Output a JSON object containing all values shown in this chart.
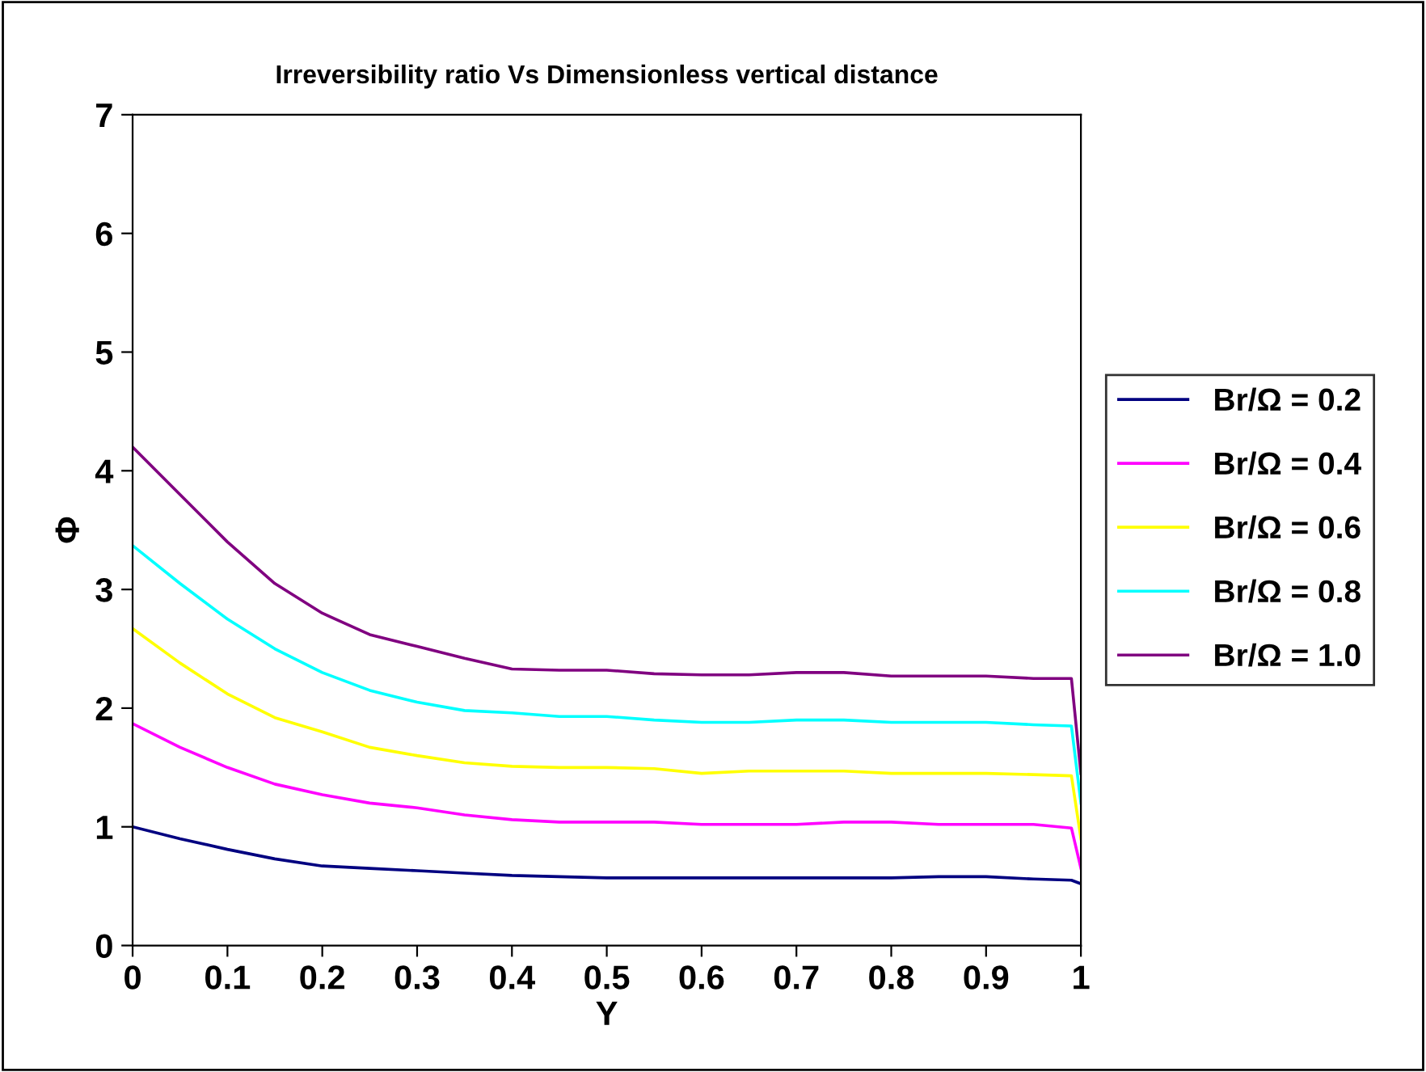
{
  "chart_data": {
    "type": "line",
    "title": "Irreversibility ratio Vs Dimensionless vertical distance",
    "xlabel": "Y",
    "ylabel": "Φ",
    "x": [
      0,
      0.05,
      0.1,
      0.15,
      0.2,
      0.25,
      0.3,
      0.35,
      0.4,
      0.45,
      0.5,
      0.55,
      0.6,
      0.65,
      0.7,
      0.75,
      0.8,
      0.85,
      0.9,
      0.95,
      0.99,
      1
    ],
    "series": [
      {
        "name": "Br/Ω = 0.2",
        "color": "#000080",
        "values": [
          1.0,
          0.9,
          0.81,
          0.73,
          0.67,
          0.65,
          0.63,
          0.61,
          0.59,
          0.58,
          0.57,
          0.57,
          0.57,
          0.57,
          0.57,
          0.57,
          0.57,
          0.58,
          0.58,
          0.56,
          0.55,
          0.52
        ]
      },
      {
        "name": "Br/Ω = 0.4",
        "color": "#ff00ff",
        "values": [
          1.87,
          1.67,
          1.5,
          1.36,
          1.27,
          1.2,
          1.16,
          1.1,
          1.06,
          1.04,
          1.04,
          1.04,
          1.02,
          1.02,
          1.02,
          1.04,
          1.04,
          1.02,
          1.02,
          1.02,
          0.99,
          0.65
        ]
      },
      {
        "name": "Br/Ω = 0.6",
        "color": "#ffff00",
        "values": [
          2.67,
          2.38,
          2.12,
          1.92,
          1.8,
          1.67,
          1.6,
          1.54,
          1.51,
          1.5,
          1.5,
          1.49,
          1.45,
          1.47,
          1.47,
          1.47,
          1.45,
          1.45,
          1.45,
          1.44,
          1.43,
          0.9
        ]
      },
      {
        "name": "Br/Ω = 0.8",
        "color": "#00ffff",
        "values": [
          3.37,
          3.05,
          2.75,
          2.5,
          2.3,
          2.15,
          2.05,
          1.98,
          1.96,
          1.93,
          1.93,
          1.9,
          1.88,
          1.88,
          1.9,
          1.9,
          1.88,
          1.88,
          1.88,
          1.86,
          1.85,
          1.2
        ]
      },
      {
        "name": "Br/Ω = 1.0",
        "color": "#800080",
        "values": [
          4.2,
          3.8,
          3.4,
          3.05,
          2.8,
          2.62,
          2.52,
          2.42,
          2.33,
          2.32,
          2.32,
          2.29,
          2.28,
          2.28,
          2.3,
          2.3,
          2.27,
          2.27,
          2.27,
          2.25,
          2.25,
          1.45
        ]
      }
    ],
    "xlim": [
      0,
      1
    ],
    "ylim": [
      0,
      7
    ],
    "xticks": [
      0,
      0.1,
      0.2,
      0.3,
      0.4,
      0.5,
      0.6,
      0.7,
      0.8,
      0.9,
      1
    ],
    "yticks": [
      0,
      1,
      2,
      3,
      4,
      5,
      6,
      7
    ],
    "legend": "right",
    "grid": false,
    "marker": "none",
    "line_style": "solid"
  }
}
